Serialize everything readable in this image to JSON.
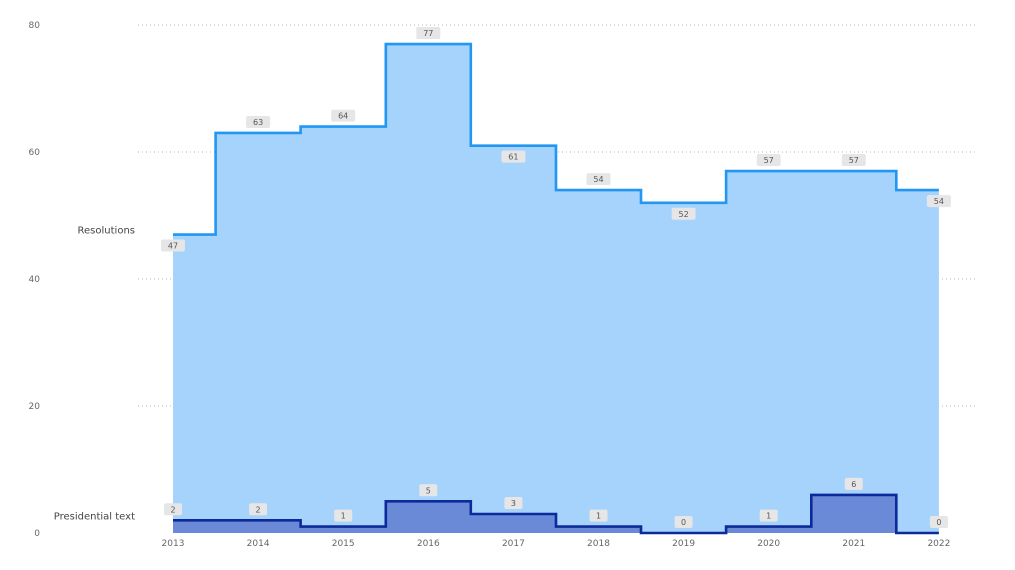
{
  "chart_data": {
    "type": "area",
    "subtype": "step",
    "categories": [
      "2013",
      "2014",
      "2015",
      "2016",
      "2017",
      "2018",
      "2019",
      "2020",
      "2021",
      "2022"
    ],
    "y_ticks": [
      "0",
      "20",
      "40",
      "60",
      "80"
    ],
    "ylim": [
      0,
      80
    ],
    "grid": true,
    "legend": "inline-left",
    "series": [
      {
        "name": "Resolutions",
        "values": [
          47,
          63,
          64,
          77,
          61,
          54,
          52,
          57,
          57,
          54
        ],
        "labels": [
          "47",
          "63",
          "64",
          "77",
          "61",
          "54",
          "52",
          "57",
          "57",
          "54"
        ],
        "line_color": "#2196f3",
        "fill_color": "#a5d3fc"
      },
      {
        "name": "Presidential text",
        "values": [
          2,
          2,
          1,
          5,
          3,
          1,
          0,
          1,
          6,
          0
        ],
        "labels": [
          "2",
          "2",
          "1",
          "5",
          "3",
          "1",
          "0",
          "1",
          "6",
          "0"
        ],
        "line_color": "#0d2a9a",
        "fill_color": "#6a8ad8"
      }
    ],
    "label_bg_color": "#e6e6e6"
  }
}
